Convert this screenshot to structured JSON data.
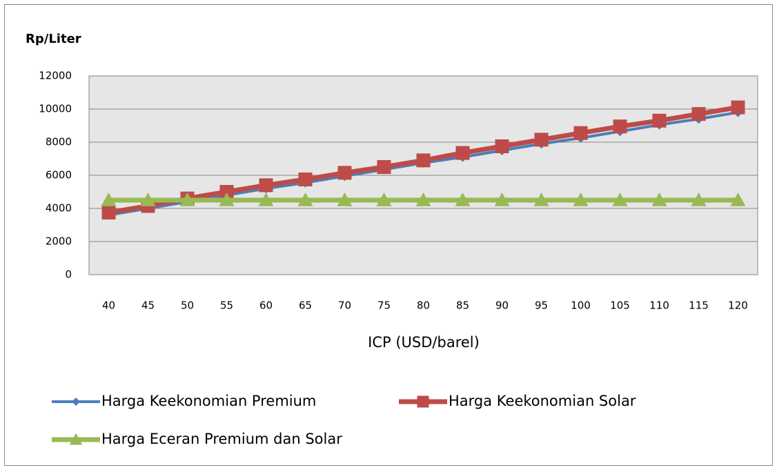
{
  "chart_data": {
    "type": "line",
    "title": "Rp/Liter",
    "x_label": "ICP (USD/barel)",
    "categories": [
      "40",
      "45",
      "50",
      "55",
      "60",
      "65",
      "70",
      "75",
      "80",
      "85",
      "90",
      "95",
      "100",
      "105",
      "110",
      "115",
      "120"
    ],
    "series": [
      {
        "name": "Harga Keekonomian Premium",
        "color": "#4a7ebb",
        "marker": "diamond",
        "values": [
          3600,
          4000,
          4400,
          4800,
          5200,
          5550,
          5950,
          6350,
          6750,
          7100,
          7500,
          7900,
          8250,
          8650,
          9050,
          9400,
          9800
        ]
      },
      {
        "name": "Harga Keekonomian Solar",
        "color": "#be4b48",
        "marker": "square",
        "values": [
          3750,
          4150,
          4600,
          5000,
          5400,
          5750,
          6150,
          6500,
          6900,
          7350,
          7750,
          8150,
          8550,
          8950,
          9300,
          9700,
          10100
        ]
      },
      {
        "name": "Harga Eceran Premium dan Solar",
        "color": "#98b954",
        "marker": "triangle",
        "values": [
          4500,
          4500,
          4500,
          4500,
          4500,
          4500,
          4500,
          4500,
          4500,
          4500,
          4500,
          4500,
          4500,
          4500,
          4500,
          4500,
          4500
        ]
      }
    ],
    "ylim": [
      0,
      12000
    ],
    "yticks": [
      0,
      2000,
      4000,
      6000,
      8000,
      10000,
      12000
    ],
    "grid": true,
    "legend": "bottom"
  }
}
